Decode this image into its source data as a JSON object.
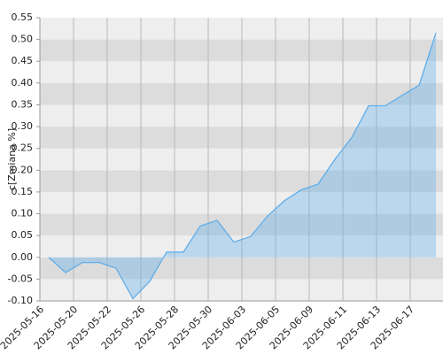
{
  "chart_data": {
    "type": "area",
    "ylabel": "c[Zmiana %]",
    "categories": [
      "2025-05-16",
      null,
      "2025-05-20",
      null,
      "2025-05-22",
      null,
      "2025-05-26",
      null,
      "2025-05-28",
      null,
      "2025-05-30",
      null,
      "2025-06-03",
      null,
      "2025-06-05",
      null,
      "2025-06-09",
      null,
      "2025-06-11",
      null,
      "2025-06-13",
      null,
      "2025-06-17",
      null
    ],
    "values": [
      0.0,
      -0.035,
      -0.012,
      -0.012,
      -0.025,
      -0.095,
      -0.055,
      0.012,
      0.012,
      0.072,
      0.085,
      0.035,
      0.048,
      0.095,
      0.13,
      0.155,
      0.168,
      0.225,
      0.275,
      0.348,
      0.348,
      0.372,
      0.395,
      0.515
    ],
    "color": "#5aabea",
    "ylim": [
      -0.1,
      0.55
    ],
    "yticks": [
      {
        "value": -0.1,
        "label": "-0.10"
      },
      {
        "value": -0.05,
        "label": "-0.05"
      },
      {
        "value": 0,
        "label": "0.00"
      },
      {
        "value": 0.05,
        "label": "0.05"
      },
      {
        "value": 0.1,
        "label": "0.10"
      },
      {
        "value": 0.15,
        "label": "0.15"
      },
      {
        "value": 0.2,
        "label": "0.20"
      },
      {
        "value": 0.25,
        "label": "0.25"
      },
      {
        "value": 0.3,
        "label": "0.30"
      },
      {
        "value": 0.35,
        "label": "0.35"
      },
      {
        "value": 0.4,
        "label": "0.40"
      },
      {
        "value": 0.45,
        "label": "0.45"
      },
      {
        "value": 0.5,
        "label": "0.50"
      },
      {
        "value": 0.55,
        "label": "0.55"
      }
    ],
    "grid": true
  }
}
